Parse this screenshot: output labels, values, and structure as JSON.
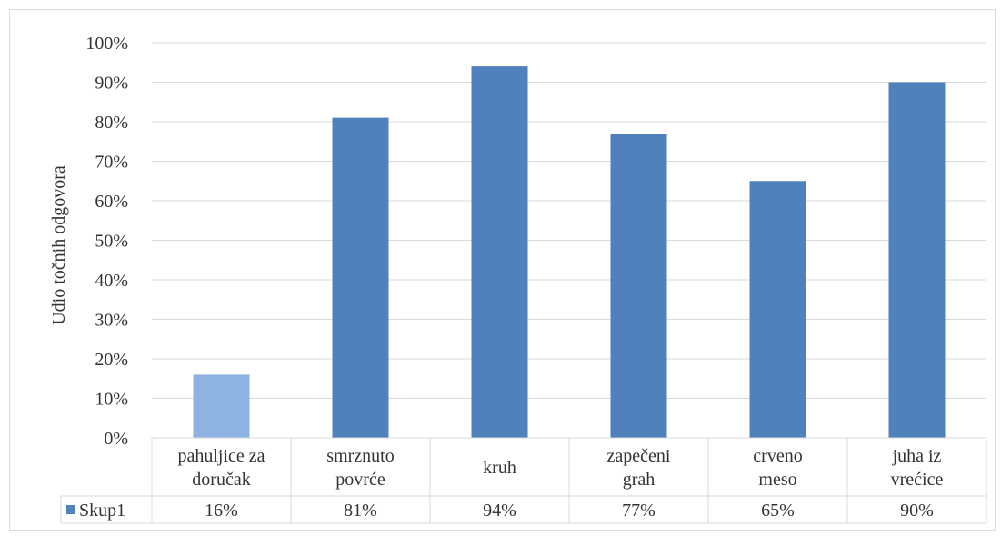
{
  "chart_data": {
    "type": "bar",
    "categories": [
      [
        "pahuljice za",
        "doručak"
      ],
      [
        "smrznuto",
        "povrće"
      ],
      [
        "kruh"
      ],
      [
        "zapečeni",
        "grah"
      ],
      [
        "crveno",
        "meso"
      ],
      [
        "juha iz",
        "vrećice"
      ]
    ],
    "series": [
      {
        "name": "Skup1",
        "values": [
          16,
          81,
          94,
          77,
          65,
          90
        ],
        "value_labels": [
          "16%",
          "81%",
          "94%",
          "77%",
          "65%",
          "90%"
        ]
      }
    ],
    "ylabel": "Udio točnih odgovora",
    "yticks": [
      "0%",
      "10%",
      "20%",
      "30%",
      "40%",
      "50%",
      "60%",
      "70%",
      "80%",
      "90%",
      "100%"
    ],
    "ylim": [
      0,
      100
    ],
    "grid": true,
    "legend": "data-table",
    "colors": {
      "bar": "#4f81bd",
      "bar_highlight": "#8db3e2",
      "grid": "#d9d9d9",
      "text": "#333333"
    },
    "highlight_index": 0
  }
}
